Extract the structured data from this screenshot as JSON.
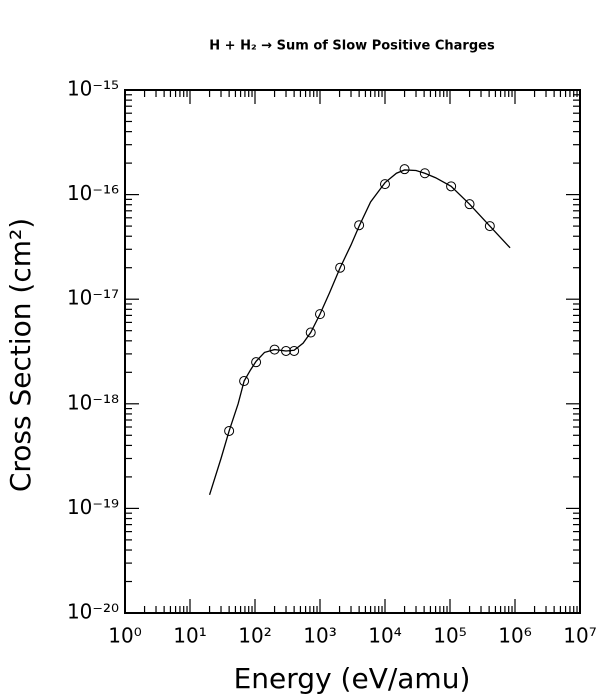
{
  "chart_data": {
    "type": "line",
    "title": "H + H₂ → Sum of Slow Positive Charges",
    "xlabel": "Energy (eV/amu)",
    "ylabel": "Cross Section (cm²)",
    "xscale": "log",
    "yscale": "log",
    "xlim": [
      1,
      10000000
    ],
    "ylim": [
      1e-20,
      1e-15
    ],
    "xticks": [
      {
        "value": 1,
        "label": "10⁰"
      },
      {
        "value": 10,
        "label": "10¹"
      },
      {
        "value": 100,
        "label": "10²"
      },
      {
        "value": 1000,
        "label": "10³"
      },
      {
        "value": 10000,
        "label": "10⁴"
      },
      {
        "value": 100000,
        "label": "10⁵"
      },
      {
        "value": 1000000,
        "label": "10⁶"
      },
      {
        "value": 10000000,
        "label": "10⁷"
      }
    ],
    "yticks": [
      {
        "value": 1e-20,
        "label": "10⁻²⁰"
      },
      {
        "value": 1e-19,
        "label": "10⁻¹⁹"
      },
      {
        "value": 1e-18,
        "label": "10⁻¹⁸"
      },
      {
        "value": 1e-17,
        "label": "10⁻¹⁷"
      },
      {
        "value": 1e-16,
        "label": "10⁻¹⁶"
      },
      {
        "value": 1e-15,
        "label": "10⁻¹⁵"
      }
    ],
    "minor_ticks": true,
    "series": [
      {
        "mode": "line",
        "color": "#000000",
        "x": [
          20,
          30,
          40,
          55,
          68,
          85,
          104,
          140,
          200,
          300,
          400,
          550,
          720,
          1000,
          1400,
          2040,
          3000,
          4000,
          6000,
          10000,
          15000,
          20000,
          30000,
          41000,
          60000,
          104000,
          200000,
          410000,
          840000
        ],
        "values": [
          1.35e-19,
          3e-19,
          5.5e-19,
          1e-18,
          1.65e-18,
          2.1e-18,
          2.55e-18,
          3.1e-18,
          3.3e-18,
          3.2e-18,
          3.25e-18,
          3.8e-18,
          4.8e-18,
          7.2e-18,
          1.15e-17,
          2e-17,
          3.3e-17,
          5e-17,
          8.5e-17,
          1.3e-16,
          1.6e-16,
          1.72e-16,
          1.7e-16,
          1.6e-16,
          1.45e-16,
          1.2e-16,
          8.1e-17,
          5e-17,
          3.1e-17
        ]
      },
      {
        "mode": "markers",
        "color": "#000000",
        "x": [
          40,
          68,
          104,
          200,
          300,
          400,
          720,
          1000,
          2040,
          4000,
          10000,
          20000,
          41000,
          104000,
          200000,
          410000
        ],
        "values": [
          5.5e-19,
          1.65e-18,
          2.5e-18,
          3.3e-18,
          3.2e-18,
          3.2e-18,
          4.8e-18,
          7.2e-18,
          2e-17,
          5.1e-17,
          1.26e-16,
          1.75e-16,
          1.6e-16,
          1.2e-16,
          8.1e-17,
          5e-17
        ]
      }
    ]
  }
}
